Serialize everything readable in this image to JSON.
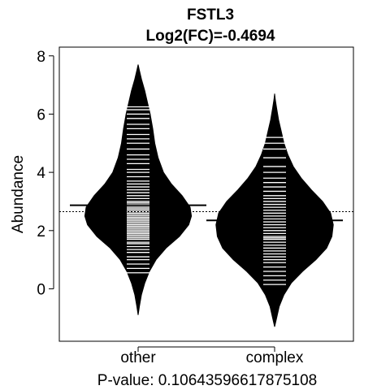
{
  "chart_data": {
    "type": "beanplot",
    "title": "FSTL3",
    "subtitle": "Log2(FC)=-0.4694",
    "ylabel": "Abundance",
    "xlabel": "P-value: 0.10643596617875108",
    "ylim": [
      -1.8,
      8.3
    ],
    "yticks": [
      0,
      2,
      4,
      6,
      8
    ],
    "ytick_labels": [
      "0",
      "2",
      "4",
      "6",
      "8"
    ],
    "overall_mean": 2.65,
    "categories": [
      "other",
      "complex"
    ],
    "groups": [
      {
        "label": "other",
        "mean": 2.87,
        "density": [
          [
            -0.9,
            0.0
          ],
          [
            -0.6,
            0.02
          ],
          [
            -0.2,
            0.05
          ],
          [
            0.2,
            0.1
          ],
          [
            0.6,
            0.17
          ],
          [
            1.0,
            0.27
          ],
          [
            1.4,
            0.42
          ],
          [
            1.8,
            0.62
          ],
          [
            2.2,
            0.76
          ],
          [
            2.5,
            0.8
          ],
          [
            2.8,
            0.78
          ],
          [
            3.2,
            0.66
          ],
          [
            3.6,
            0.5
          ],
          [
            4.0,
            0.38
          ],
          [
            4.5,
            0.3
          ],
          [
            5.0,
            0.25
          ],
          [
            5.5,
            0.22
          ],
          [
            6.0,
            0.18
          ],
          [
            6.4,
            0.14
          ],
          [
            6.8,
            0.1
          ],
          [
            7.2,
            0.05
          ],
          [
            7.5,
            0.02
          ],
          [
            7.7,
            0.0
          ]
        ],
        "observations": [
          0.55,
          0.7,
          0.85,
          1.0,
          1.1,
          1.25,
          1.35,
          1.45,
          1.55,
          1.6,
          1.7,
          1.75,
          1.8,
          1.85,
          1.9,
          1.95,
          2.0,
          2.05,
          2.1,
          2.15,
          2.2,
          2.25,
          2.3,
          2.35,
          2.4,
          2.45,
          2.5,
          2.55,
          2.6,
          2.65,
          2.7,
          2.75,
          2.8,
          2.85,
          2.9,
          2.95,
          3.0,
          3.1,
          3.2,
          3.3,
          3.4,
          3.5,
          3.6,
          3.7,
          3.85,
          4.0,
          4.1,
          4.3,
          4.45,
          4.6,
          4.8,
          5.0,
          5.15,
          5.3,
          5.5,
          5.65,
          5.85,
          6.0,
          6.15,
          6.25
        ]
      },
      {
        "label": "complex",
        "mean": 2.35,
        "density": [
          [
            -1.3,
            0.0
          ],
          [
            -1.0,
            0.03
          ],
          [
            -0.6,
            0.07
          ],
          [
            -0.2,
            0.14
          ],
          [
            0.2,
            0.25
          ],
          [
            0.6,
            0.42
          ],
          [
            1.0,
            0.62
          ],
          [
            1.4,
            0.78
          ],
          [
            1.8,
            0.86
          ],
          [
            2.2,
            0.88
          ],
          [
            2.6,
            0.84
          ],
          [
            3.0,
            0.72
          ],
          [
            3.4,
            0.55
          ],
          [
            3.8,
            0.4
          ],
          [
            4.2,
            0.28
          ],
          [
            4.6,
            0.2
          ],
          [
            5.0,
            0.14
          ],
          [
            5.4,
            0.1
          ],
          [
            5.8,
            0.06
          ],
          [
            6.2,
            0.03
          ],
          [
            6.5,
            0.01
          ],
          [
            6.7,
            0.0
          ]
        ],
        "observations": [
          0.15,
          0.3,
          0.45,
          0.6,
          0.75,
          0.9,
          1.0,
          1.1,
          1.2,
          1.3,
          1.4,
          1.5,
          1.6,
          1.7,
          1.75,
          1.8,
          1.9,
          2.0,
          2.1,
          2.2,
          2.3,
          2.4,
          2.5,
          2.6,
          2.7,
          2.8,
          2.9,
          3.0,
          3.1,
          3.2,
          3.35,
          3.5,
          3.65,
          3.8,
          4.0,
          4.2,
          4.5,
          4.8,
          5.0,
          5.2
        ]
      }
    ]
  }
}
